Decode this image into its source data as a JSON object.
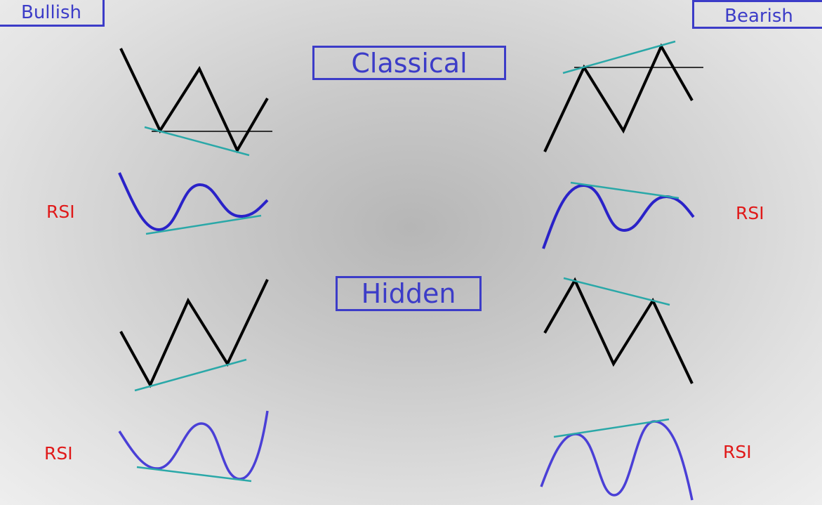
{
  "labels": {
    "bullish": "Bullish",
    "bearish": "Bearish",
    "classical": "Classical",
    "hidden": "Hidden",
    "rsi": "RSI"
  },
  "colors": {
    "price_line": "#000000",
    "rsi_curve": "#2a22c8",
    "rsi_curve_light": "#4a3fd6",
    "trend_line": "#2aa8a8",
    "label_box": "#3c3cc8",
    "rsi_label": "#e01919"
  }
}
